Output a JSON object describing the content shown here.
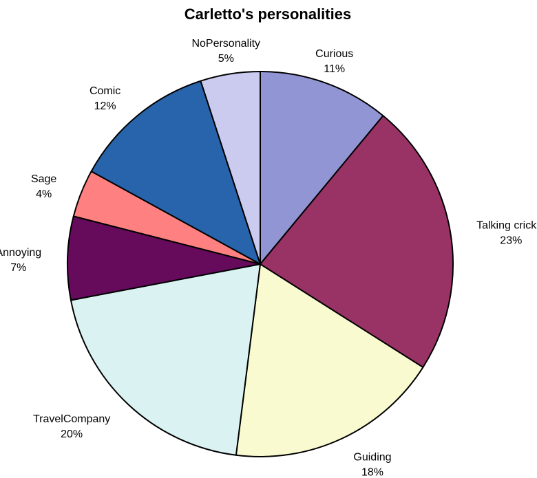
{
  "chart_data": {
    "type": "pie",
    "title": "Carletto's personalities",
    "start": "top",
    "direction": "clockwise",
    "slices": [
      {
        "label": "Curious",
        "value": 11,
        "value_label": "11%",
        "color": "#9295d4"
      },
      {
        "label": "Talking cricket",
        "value": 23,
        "value_label": "23%",
        "color": "#993366"
      },
      {
        "label": "Guiding",
        "value": 18,
        "value_label": "18%",
        "color": "#fafad0"
      },
      {
        "label": "TravelCompany",
        "value": 20,
        "value_label": "20%",
        "color": "#daf2f2"
      },
      {
        "label": "Annoying",
        "value": 7,
        "value_label": "7%",
        "color": "#660a5c"
      },
      {
        "label": "Sage",
        "value": 4,
        "value_label": "4%",
        "color": "#ff8080"
      },
      {
        "label": "Comic",
        "value": 12,
        "value_label": "12%",
        "color": "#2864ab"
      },
      {
        "label": "NoPersonality",
        "value": 5,
        "value_label": "5%",
        "color": "#cacbef"
      }
    ]
  }
}
